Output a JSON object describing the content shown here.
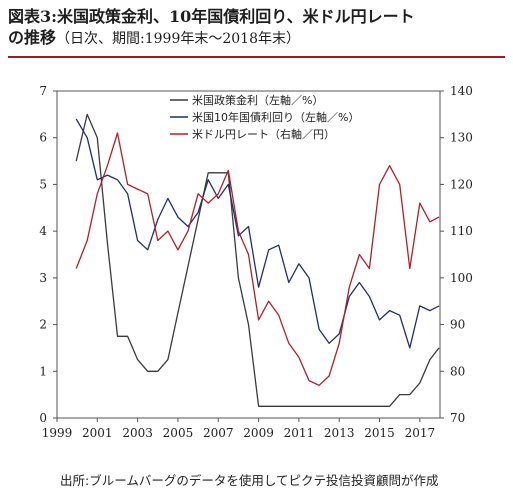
{
  "title": {
    "line1": "図表3:米国政策金利、10年国債利回り、米ドル円レート",
    "line2_main": "の推移",
    "line2_sub": "（日次、期間:1999年末～2018年末）"
  },
  "source": "出所:ブルームバーグのデータを使用してピクテ投信投資顧問が作成",
  "chart_data": {
    "type": "line",
    "x": [
      1999.95,
      2000.5,
      2001.0,
      2001.5,
      2002.0,
      2002.5,
      2003.0,
      2003.5,
      2004.0,
      2004.5,
      2005.0,
      2005.5,
      2006.0,
      2006.5,
      2007.0,
      2007.5,
      2008.0,
      2008.5,
      2009.0,
      2009.5,
      2010.0,
      2010.5,
      2011.0,
      2011.5,
      2012.0,
      2012.5,
      2013.0,
      2013.5,
      2014.0,
      2014.5,
      2015.0,
      2015.5,
      2016.0,
      2016.5,
      2017.0,
      2017.5,
      2017.95
    ],
    "series": [
      {
        "name": "米国政策金利（左軸／%）",
        "axis": "left",
        "color": "#3a3a3a",
        "values": [
          5.5,
          6.5,
          6.0,
          3.75,
          1.75,
          1.75,
          1.25,
          1.0,
          1.0,
          1.25,
          2.25,
          3.25,
          4.25,
          5.25,
          5.25,
          5.25,
          3.0,
          2.0,
          0.25,
          0.25,
          0.25,
          0.25,
          0.25,
          0.25,
          0.25,
          0.25,
          0.25,
          0.25,
          0.25,
          0.25,
          0.25,
          0.25,
          0.5,
          0.5,
          0.75,
          1.25,
          1.5
        ]
      },
      {
        "name": "米国10年国債利回り（左軸／%）",
        "axis": "left",
        "color": "#1f2f6e",
        "values": [
          6.4,
          6.0,
          5.1,
          5.2,
          5.1,
          4.8,
          3.8,
          3.6,
          4.25,
          4.7,
          4.3,
          4.1,
          4.4,
          5.1,
          4.7,
          5.0,
          3.9,
          4.1,
          2.8,
          3.6,
          3.7,
          2.9,
          3.3,
          3.0,
          1.9,
          1.6,
          1.8,
          2.6,
          2.9,
          2.6,
          2.1,
          2.3,
          2.2,
          1.5,
          2.4,
          2.3,
          2.4
        ]
      },
      {
        "name": "米ドル円レート（右軸／円）",
        "axis": "right",
        "color": "#b0202a",
        "values": [
          102,
          108,
          118,
          124,
          131,
          120,
          119,
          118,
          108,
          110,
          106,
          110,
          118,
          116,
          118,
          123,
          110,
          105,
          91,
          95,
          92,
          86,
          83,
          78,
          77,
          79,
          86,
          98,
          105,
          102,
          120,
          124,
          120,
          102,
          116,
          112,
          113
        ]
      }
    ],
    "left_axis": {
      "ticks": [
        "0",
        "1",
        "2",
        "3",
        "4",
        "5",
        "6",
        "7"
      ],
      "ylim": [
        0,
        7
      ]
    },
    "right_axis": {
      "ticks": [
        "70",
        "80",
        "90",
        "100",
        "110",
        "120",
        "130",
        "140"
      ],
      "ylim": [
        70,
        140
      ]
    },
    "x_ticks": [
      "1999",
      "2001",
      "2003",
      "2005",
      "2007",
      "2009",
      "2011",
      "2013",
      "2015",
      "2017"
    ],
    "xlim": [
      1999,
      2018
    ]
  }
}
